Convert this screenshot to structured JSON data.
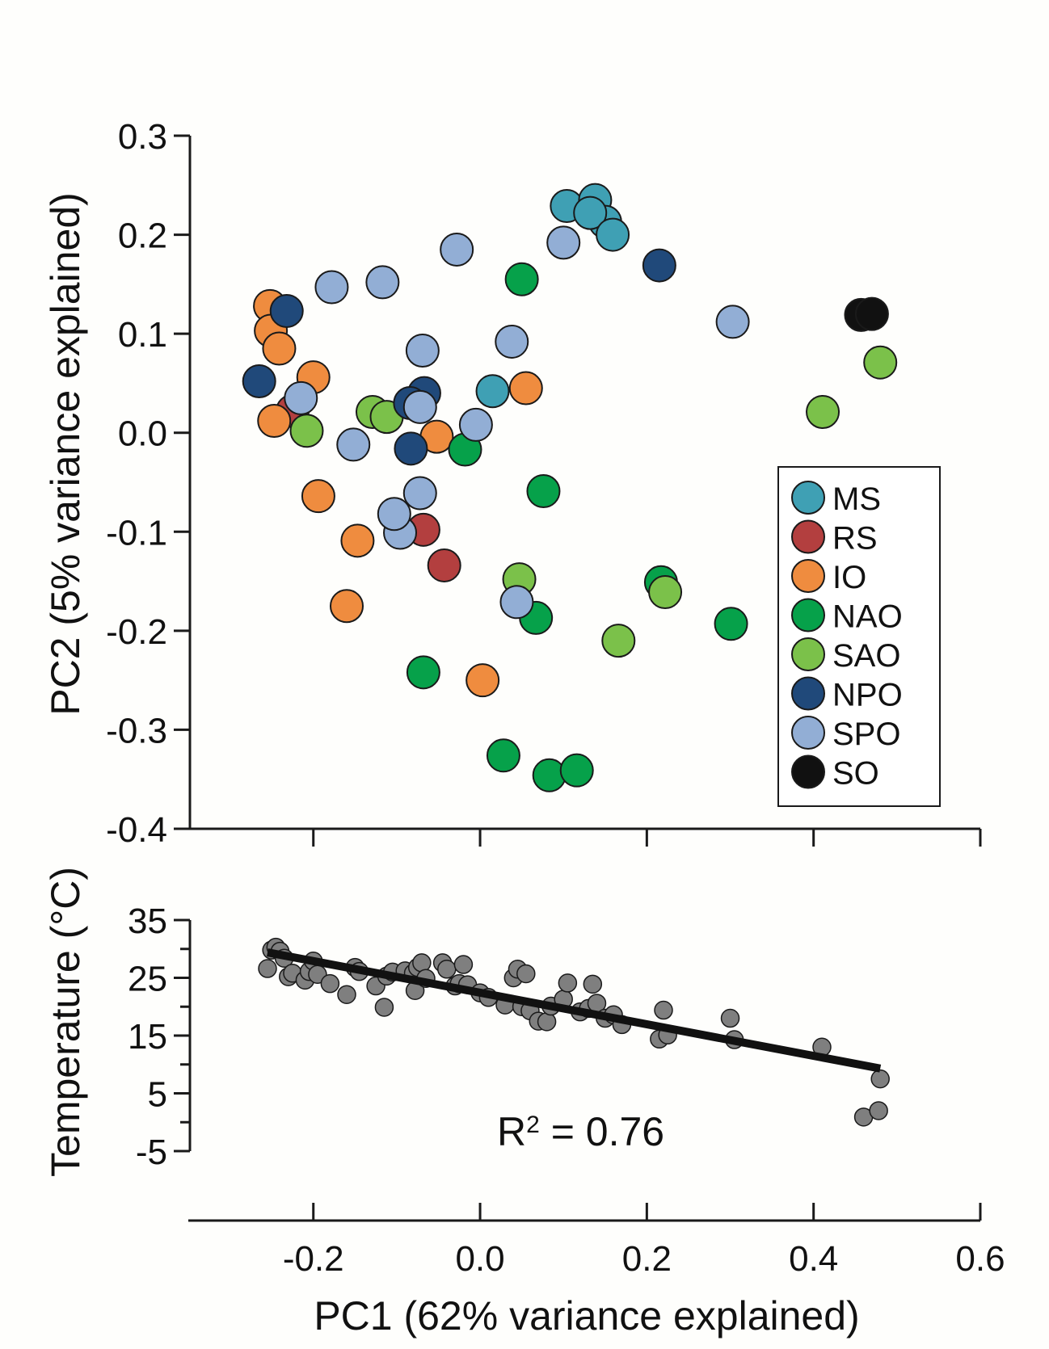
{
  "chart_data": [
    {
      "type": "scatter",
      "ylabel": "PC2 (5% variance explained)",
      "xlim": [
        -0.35,
        0.6
      ],
      "ylim": [
        -0.4,
        0.3
      ],
      "yticks": [
        "0.3",
        "0.2",
        "0.1",
        "0.0",
        "-0.1",
        "-0.2",
        "-0.3",
        "-0.4"
      ],
      "ytick_values": [
        0.3,
        0.2,
        0.1,
        0.0,
        -0.1,
        -0.2,
        -0.3,
        -0.4
      ],
      "xtick_values": [
        -0.2,
        0.0,
        0.2,
        0.4,
        0.6
      ],
      "legend": {
        "position": "bottom-right"
      },
      "series": [
        {
          "name": "MS",
          "color": "#3fa0b4",
          "points": [
            [
              0.104,
              0.229
            ],
            [
              0.138,
              0.235
            ],
            [
              0.15,
              0.213
            ],
            [
              0.132,
              0.222
            ],
            [
              0.159,
              0.2
            ],
            [
              0.015,
              0.042
            ]
          ]
        },
        {
          "name": "RS",
          "color": "#b33f3f",
          "points": [
            [
              -0.225,
              0.022
            ],
            [
              -0.068,
              -0.098
            ],
            [
              -0.043,
              -0.134
            ]
          ]
        },
        {
          "name": "IO",
          "color": "#ef8c3f",
          "points": [
            [
              -0.252,
              0.128
            ],
            [
              -0.251,
              0.103
            ],
            [
              -0.241,
              0.085
            ],
            [
              -0.2,
              0.056
            ],
            [
              -0.247,
              0.012
            ],
            [
              -0.052,
              -0.004
            ],
            [
              0.055,
              0.045
            ],
            [
              -0.194,
              -0.064
            ],
            [
              -0.147,
              -0.109
            ],
            [
              -0.16,
              -0.175
            ],
            [
              0.003,
              -0.25
            ]
          ]
        },
        {
          "name": "NAO",
          "color": "#06a14a",
          "points": [
            [
              0.05,
              0.155
            ],
            [
              -0.018,
              -0.017
            ],
            [
              0.076,
              -0.059
            ],
            [
              0.067,
              -0.187
            ],
            [
              0.217,
              -0.151
            ],
            [
              0.301,
              -0.193
            ],
            [
              -0.068,
              -0.242
            ],
            [
              0.028,
              -0.326
            ],
            [
              0.083,
              -0.346
            ],
            [
              0.116,
              -0.341
            ]
          ]
        },
        {
          "name": "SAO",
          "color": "#7bc14a",
          "points": [
            [
              0.48,
              0.071
            ],
            [
              0.411,
              0.021
            ],
            [
              -0.129,
              0.021
            ],
            [
              -0.112,
              0.016
            ],
            [
              -0.208,
              0.002
            ],
            [
              0.047,
              -0.148
            ],
            [
              0.222,
              -0.161
            ],
            [
              0.166,
              -0.21
            ]
          ]
        },
        {
          "name": "NPO",
          "color": "#20497a",
          "points": [
            [
              -0.232,
              0.123
            ],
            [
              -0.265,
              0.052
            ],
            [
              -0.067,
              0.04
            ],
            [
              -0.084,
              0.03
            ],
            [
              -0.083,
              -0.016
            ],
            [
              0.215,
              0.169
            ]
          ]
        },
        {
          "name": "SPO",
          "color": "#92aed5",
          "points": [
            [
              -0.178,
              0.147
            ],
            [
              -0.117,
              0.152
            ],
            [
              -0.028,
              0.185
            ],
            [
              0.1,
              0.192
            ],
            [
              -0.069,
              0.083
            ],
            [
              0.038,
              0.092
            ],
            [
              -0.215,
              0.035
            ],
            [
              -0.072,
              0.026
            ],
            [
              -0.005,
              0.008
            ],
            [
              -0.152,
              -0.012
            ],
            [
              -0.072,
              -0.061
            ],
            [
              -0.096,
              -0.101
            ],
            [
              -0.103,
              -0.082
            ],
            [
              0.044,
              -0.171
            ],
            [
              0.303,
              0.112
            ]
          ]
        },
        {
          "name": "SO",
          "color": "#111111",
          "points": [
            [
              0.457,
              0.119
            ],
            [
              0.47,
              0.12
            ]
          ]
        }
      ]
    },
    {
      "type": "scatter",
      "xlabel": "PC1 (62% variance explained)",
      "ylabel": "Temperature (°C)",
      "xlim": [
        -0.35,
        0.6
      ],
      "ylim": [
        -5,
        35
      ],
      "yticks": [
        "35",
        "25",
        "15",
        "5",
        "-5"
      ],
      "ytick_values": [
        35,
        25,
        15,
        5,
        -5
      ],
      "xticks": [
        "-0.2",
        "0.0",
        "0.2",
        "0.4",
        "0.6"
      ],
      "xtick_values": [
        -0.2,
        0.0,
        0.2,
        0.4,
        0.6
      ],
      "annotation": {
        "text": "R",
        "sup": "2",
        "rest": " = 0.76"
      },
      "fit_line": {
        "x": [
          -0.255,
          0.48
        ],
        "y": [
          29.4,
          9.3
        ]
      },
      "point_color": "#7f7f7f",
      "points": [
        [
          -0.255,
          26.6
        ],
        [
          -0.25,
          29.8
        ],
        [
          -0.245,
          30.3
        ],
        [
          -0.24,
          29.6
        ],
        [
          -0.235,
          28.4
        ],
        [
          -0.23,
          25.2
        ],
        [
          -0.225,
          25.8
        ],
        [
          -0.21,
          24.6
        ],
        [
          -0.205,
          26.1
        ],
        [
          -0.2,
          27.9
        ],
        [
          -0.195,
          25.6
        ],
        [
          -0.18,
          24.0
        ],
        [
          -0.16,
          22.1
        ],
        [
          -0.15,
          26.8
        ],
        [
          -0.145,
          26.1
        ],
        [
          -0.125,
          23.6
        ],
        [
          -0.115,
          19.9
        ],
        [
          -0.112,
          25.3
        ],
        [
          -0.105,
          26.0
        ],
        [
          -0.09,
          26.2
        ],
        [
          -0.08,
          25.8
        ],
        [
          -0.078,
          22.8
        ],
        [
          -0.075,
          26.8
        ],
        [
          -0.07,
          27.6
        ],
        [
          -0.065,
          24.9
        ],
        [
          -0.045,
          27.6
        ],
        [
          -0.04,
          26.5
        ],
        [
          -0.03,
          23.6
        ],
        [
          -0.025,
          24.0
        ],
        [
          -0.02,
          27.3
        ],
        [
          -0.015,
          23.8
        ],
        [
          0.0,
          22.4
        ],
        [
          0.01,
          21.6
        ],
        [
          0.03,
          20.3
        ],
        [
          0.04,
          25.0
        ],
        [
          0.045,
          26.5
        ],
        [
          0.05,
          20.0
        ],
        [
          0.055,
          25.7
        ],
        [
          0.06,
          19.3
        ],
        [
          0.07,
          17.5
        ],
        [
          0.08,
          17.4
        ],
        [
          0.085,
          20.1
        ],
        [
          0.1,
          21.3
        ],
        [
          0.105,
          24.1
        ],
        [
          0.12,
          19.1
        ],
        [
          0.13,
          19.7
        ],
        [
          0.135,
          23.9
        ],
        [
          0.14,
          20.6
        ],
        [
          0.15,
          18.0
        ],
        [
          0.16,
          18.6
        ],
        [
          0.17,
          16.9
        ],
        [
          0.215,
          14.4
        ],
        [
          0.22,
          19.4
        ],
        [
          0.225,
          15.1
        ],
        [
          0.3,
          18.0
        ],
        [
          0.305,
          14.3
        ],
        [
          0.41,
          13.0
        ],
        [
          0.46,
          0.9
        ],
        [
          0.478,
          2.0
        ],
        [
          0.48,
          7.5
        ]
      ]
    }
  ],
  "colors": {
    "point_stroke": "#1a1a1a",
    "axis": "#1a1a1a",
    "background": "#fefefc"
  }
}
